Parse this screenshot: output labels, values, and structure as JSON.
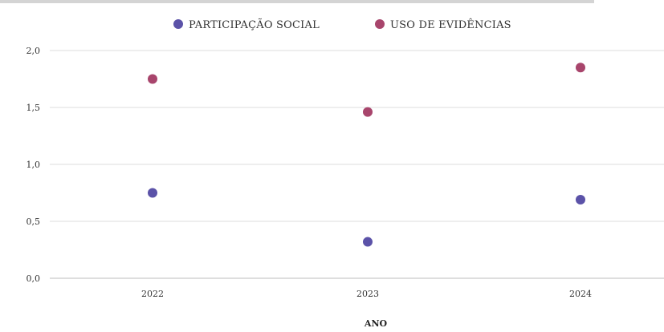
{
  "chart_data": {
    "type": "scatter",
    "title": "",
    "xlabel": "ANO",
    "ylabel": "",
    "categories": [
      "2022",
      "2023",
      "2024"
    ],
    "ylim": [
      0,
      2
    ],
    "yticks": [
      "0,0",
      "0,5",
      "1,0",
      "1,5",
      "2,0"
    ],
    "grid": true,
    "legend_position": "top-center",
    "series": [
      {
        "name": "PARTICIPAÇÃO SOCIAL",
        "color": "#5b52a8",
        "values": [
          0.75,
          0.32,
          0.69
        ]
      },
      {
        "name": "USO DE EVIDÊNCIAS",
        "color": "#a8456c",
        "values": [
          1.75,
          1.46,
          1.85
        ]
      }
    ]
  }
}
